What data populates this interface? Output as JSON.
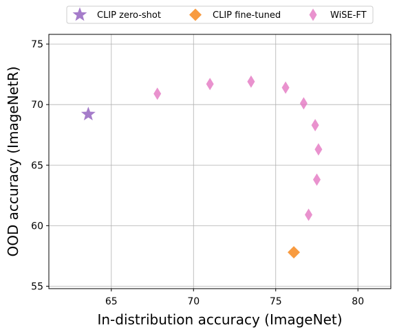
{
  "chart_data": {
    "type": "scatter",
    "xlabel": "In-distribution accuracy (ImageNet)",
    "ylabel": "OOD accuracy (ImageNetR)",
    "xlim": [
      61.2,
      82.0
    ],
    "ylim": [
      54.8,
      75.8
    ],
    "xticks": [
      65,
      70,
      75,
      80
    ],
    "yticks": [
      55,
      60,
      65,
      70,
      75
    ],
    "grid": true,
    "legend_position": "top",
    "series": [
      {
        "name": "CLIP zero-shot",
        "marker": "star",
        "color": "#9b6ec4",
        "points": [
          {
            "x": 63.6,
            "y": 69.2
          }
        ]
      },
      {
        "name": "CLIP fine-tuned",
        "marker": "diamond",
        "color": "#f7902b",
        "points": [
          {
            "x": 76.1,
            "y": 57.8
          }
        ]
      },
      {
        "name": "WiSE-FT",
        "marker": "thin_diamond",
        "color": "#e377c2",
        "points": [
          {
            "x": 67.8,
            "y": 70.9
          },
          {
            "x": 71.0,
            "y": 71.7
          },
          {
            "x": 73.5,
            "y": 71.9
          },
          {
            "x": 75.6,
            "y": 71.4
          },
          {
            "x": 76.7,
            "y": 70.1
          },
          {
            "x": 77.4,
            "y": 68.3
          },
          {
            "x": 77.6,
            "y": 66.3
          },
          {
            "x": 77.5,
            "y": 63.8
          },
          {
            "x": 77.0,
            "y": 60.9
          }
        ]
      }
    ]
  }
}
